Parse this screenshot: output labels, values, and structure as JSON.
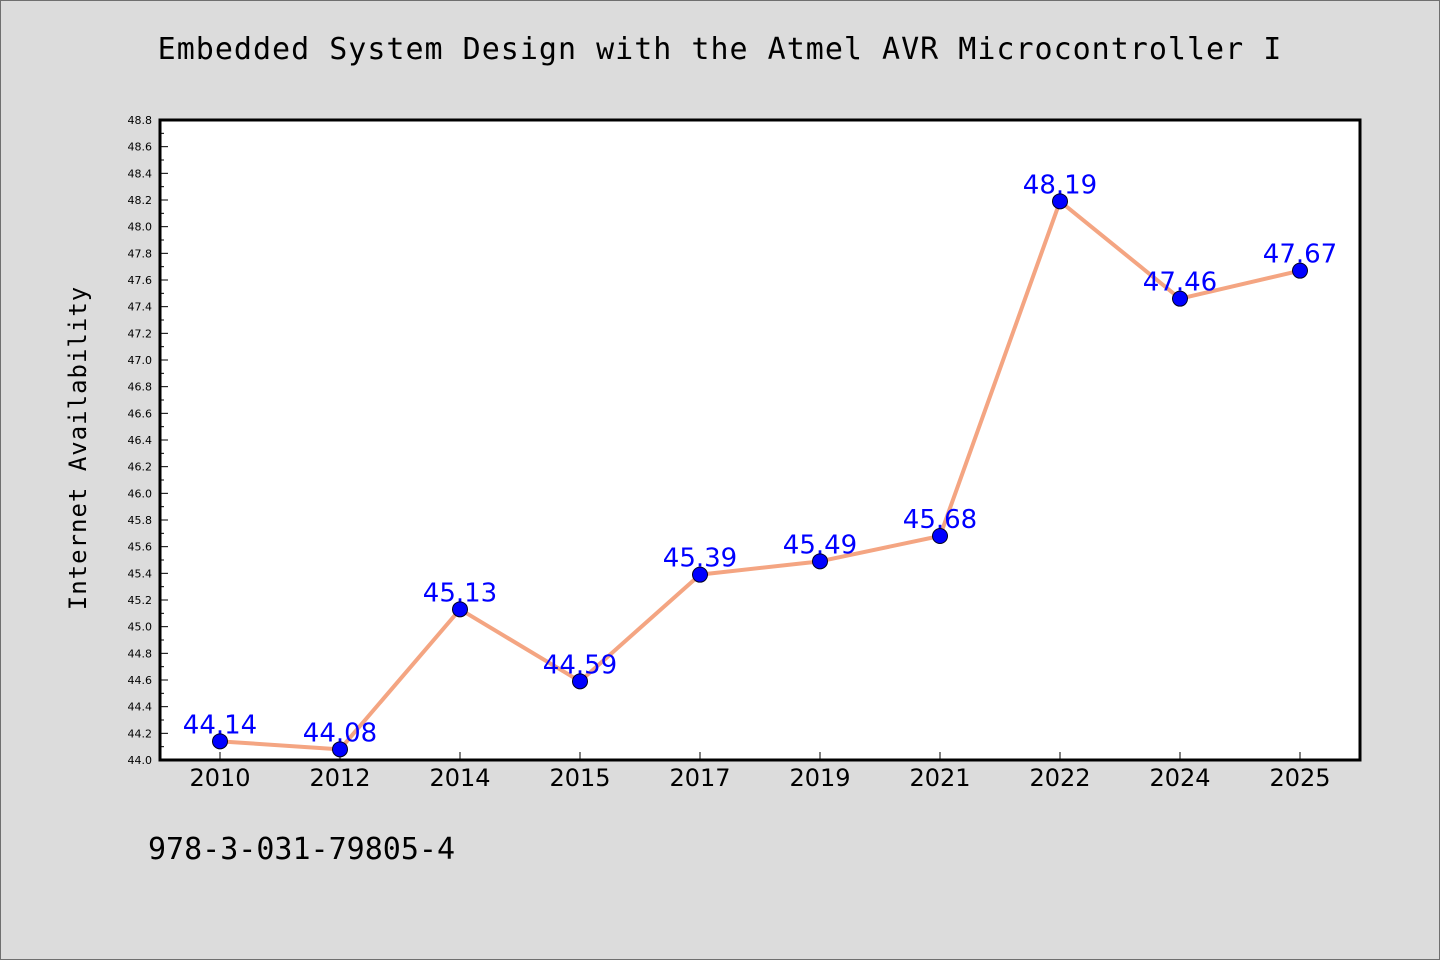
{
  "chart_data": {
    "type": "line",
    "title": "Embedded System Design with the Atmel AVR Microcontroller I",
    "xlabel": "",
    "ylabel": "Internet Availability",
    "categories": [
      "2010",
      "2012",
      "2014",
      "2015",
      "2017",
      "2019",
      "2021",
      "2022",
      "2024",
      "2025"
    ],
    "series": [
      {
        "values": [
          44.14,
          44.08,
          45.13,
          44.59,
          45.39,
          45.49,
          45.68,
          48.19,
          47.46,
          47.67
        ],
        "data_labels": [
          "44.14",
          "44.08",
          "45.13",
          "44.59",
          "45.39",
          "45.49",
          "45.68",
          "48.19",
          "47.46",
          "47.67"
        ]
      }
    ],
    "ylim": [
      44.0,
      48.8
    ],
    "y_ticks": [
      "44.0",
      "44.2",
      "44.4",
      "44.6",
      "44.8",
      "45.0",
      "45.2",
      "45.4",
      "45.6",
      "45.8",
      "46.0",
      "46.2",
      "46.4",
      "46.6",
      "46.8",
      "47.0",
      "47.2",
      "47.4",
      "47.6",
      "47.8",
      "48.0",
      "48.2",
      "48.4",
      "48.6",
      "48.8"
    ],
    "grid": false,
    "legend": "none",
    "colors": {
      "line": "#f4a582",
      "marker": "#0000ff",
      "label": "#0000ff",
      "plot_background": "#ffffff",
      "figure_background": "#dcdcdc"
    }
  },
  "footer": {
    "isbn": "978-3-031-79805-4"
  }
}
